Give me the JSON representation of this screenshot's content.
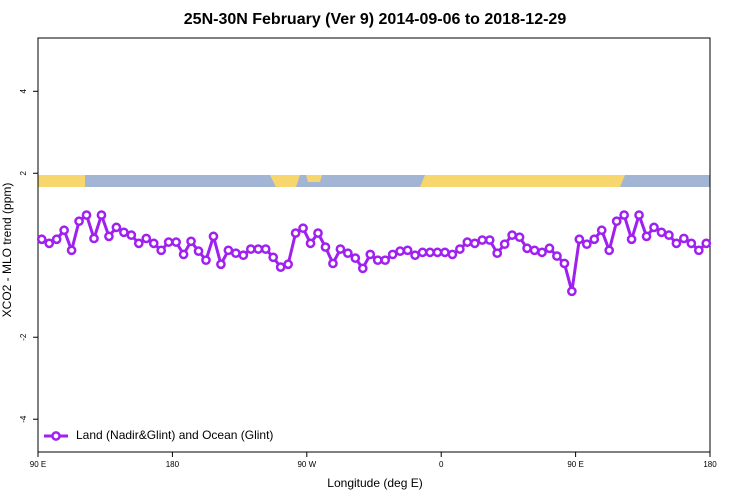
{
  "chart_data": {
    "type": "line",
    "title": "25N-30N February (Ver 9)   2014-09-06 to 2018-12-29",
    "x_label": "Longitude (deg E)",
    "y_label": "XCO2 - MLO trend (ppm)",
    "x": [
      92.5,
      97.5,
      102.5,
      107.5,
      112.5,
      117.5,
      122.5,
      127.5,
      132.5,
      137.5,
      142.5,
      147.5,
      152.5,
      157.5,
      162.5,
      167.5,
      172.5,
      177.5,
      182.5,
      187.5,
      192.5,
      197.5,
      202.5,
      207.5,
      212.5,
      217.5,
      222.5,
      227.5,
      232.5,
      237.5,
      242.5,
      247.5,
      252.5,
      257.5,
      262.5,
      267.5,
      272.5,
      277.5,
      282.5,
      287.5,
      292.5,
      297.5,
      302.5,
      307.5,
      312.5,
      317.5,
      322.5,
      327.5,
      332.5,
      337.5,
      342.5,
      347.5,
      352.5,
      357.5,
      362.5,
      367.5,
      372.5,
      377.5,
      382.5,
      387.5,
      392.5,
      397.5,
      402.5,
      407.5,
      412.5,
      417.5,
      422.5,
      427.5,
      432.5,
      437.5,
      442.5,
      447.5,
      452.5,
      457.5,
      462.5,
      467.5,
      472.5,
      477.5,
      482.5,
      487.5,
      492.5,
      497.5,
      502.5,
      507.5,
      512.5,
      517.5,
      522.5,
      527.5,
      532.5,
      537.5
    ],
    "series": [
      {
        "name": "Land (Nadir&Glint) and Ocean (Glint)",
        "color": "#a020f0",
        "values": [
          0.39,
          0.29,
          0.39,
          0.61,
          0.12,
          0.83,
          0.98,
          0.41,
          0.98,
          0.46,
          0.68,
          0.56,
          0.49,
          0.29,
          0.41,
          0.29,
          0.12,
          0.32,
          0.32,
          0.02,
          0.34,
          0.1,
          -0.12,
          0.46,
          -0.22,
          0.12,
          0.05,
          0,
          0.15,
          0.15,
          0.15,
          -0.05,
          -0.29,
          -0.22,
          0.54,
          0.66,
          0.29,
          0.54,
          0.2,
          -0.2,
          0.15,
          0.05,
          -0.07,
          -0.32,
          0.02,
          -0.12,
          -0.12,
          0.02,
          0.1,
          0.12,
          0,
          0.07,
          0.07,
          0.07,
          0.07,
          0.02,
          0.15,
          0.32,
          0.29,
          0.37,
          0.37,
          0.05,
          0.27,
          0.49,
          0.44,
          0.17,
          0.12,
          0.07,
          0.17,
          -0.02,
          -0.2,
          -0.88,
          0.39,
          0.27,
          0.39,
          0.61,
          0.12,
          0.83,
          0.98,
          0.39,
          0.98,
          0.46,
          0.68,
          0.56,
          0.49,
          0.29,
          0.41,
          0.29,
          0.12,
          0.29
        ]
      }
    ],
    "xlim": [
      90,
      540
    ],
    "xticks": [
      {
        "value": 90,
        "label": "90 E"
      },
      180,
      {
        "value": 270,
        "label": "90 W"
      },
      {
        "value": 360,
        "label": "0"
      },
      {
        "value": 450,
        "label": "90 E"
      },
      {
        "value": 540,
        "label": "180"
      }
    ],
    "ylim": [
      -4.8,
      5.3
    ],
    "yticks": [
      -4,
      -2,
      2,
      4
    ],
    "legend": "bottom-left"
  }
}
